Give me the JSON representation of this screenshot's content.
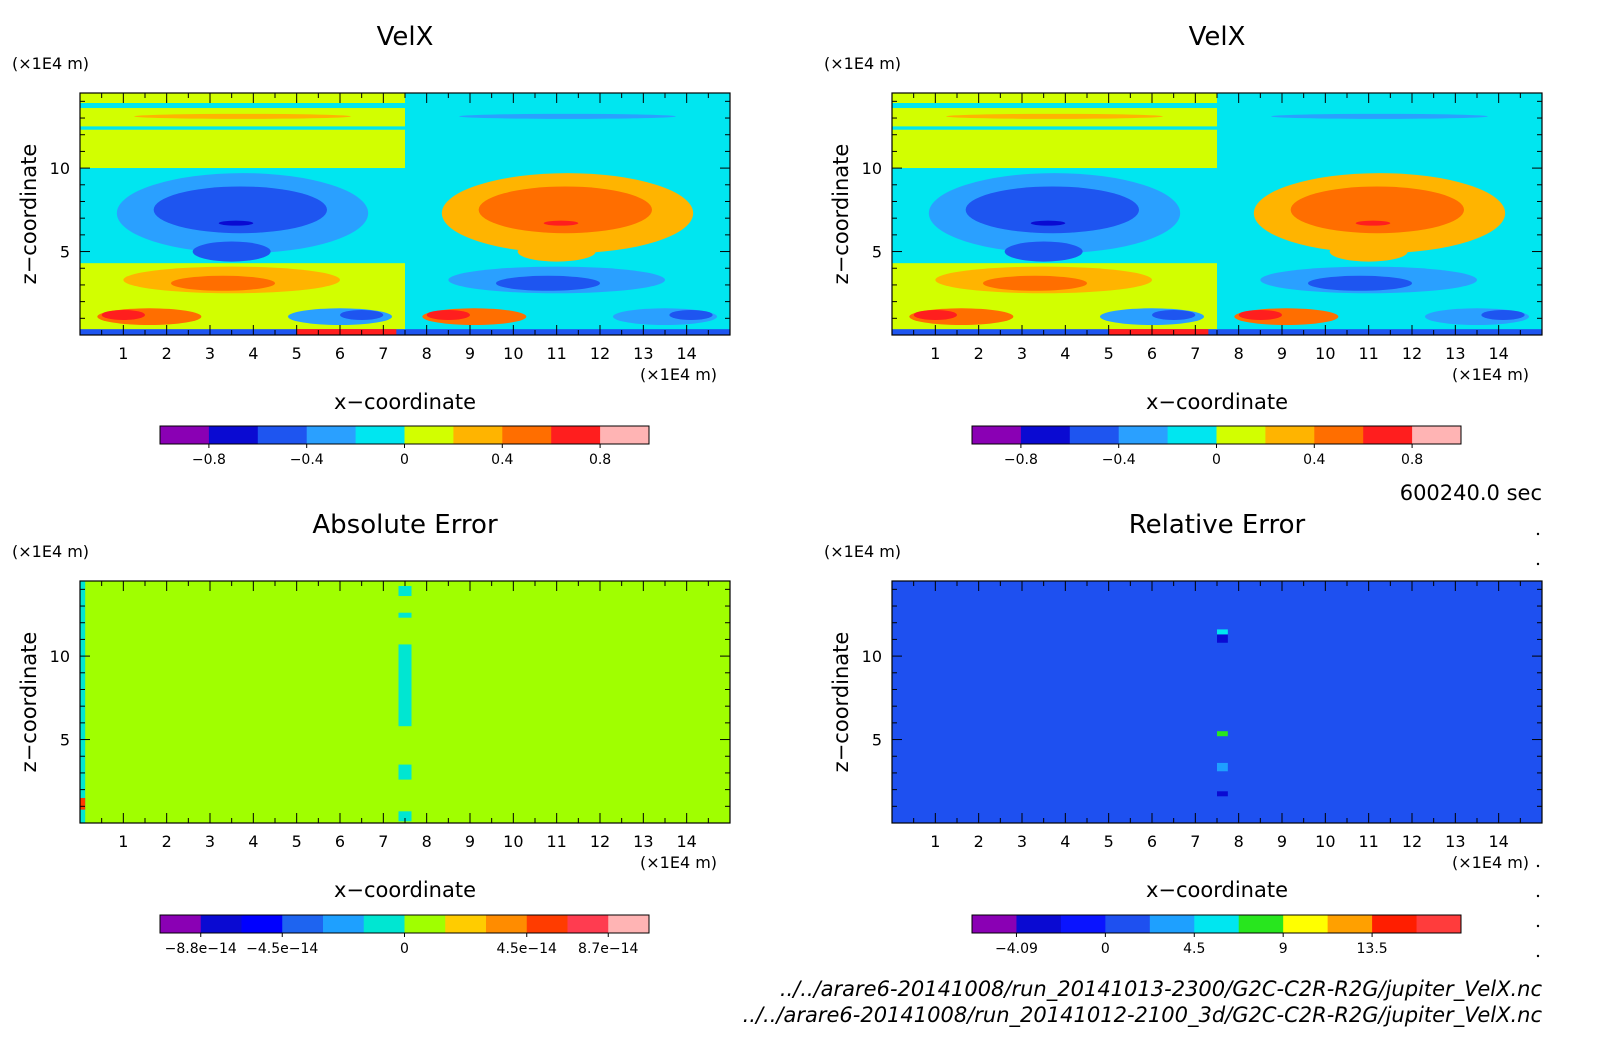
{
  "time_label": "600240.0 sec",
  "footer": {
    "file1": "../../arare6-20141008/run_20141013-2300/G2C-C2R-R2G/jupiter_VelX.nc",
    "file2": "../../arare6-20141008/run_20141012-2100_3d/G2C-C2R-R2G/jupiter_VelX.nc"
  },
  "chart_data": [
    {
      "type": "heatmap",
      "title": "VelX",
      "xlabel": "x−coordinate",
      "ylabel": "z−coordinate",
      "x_unit": "(×1E4 m)",
      "y_unit": "(×1E4 m)",
      "xlim": [
        0,
        15
      ],
      "ylim": [
        0,
        14.5
      ],
      "x_ticks": [
        "1",
        "2",
        "3",
        "4",
        "5",
        "6",
        "7",
        "8",
        "9",
        "10",
        "11",
        "12",
        "13",
        "14"
      ],
      "y_ticks": [
        "5",
        "10"
      ],
      "colorbar": {
        "levels": [
          -1.0,
          -0.8,
          -0.6,
          -0.4,
          -0.2,
          0,
          0.2,
          0.4,
          0.6,
          0.8,
          1.0
        ],
        "colors": [
          "#8a00b4",
          "#0a0ad2",
          "#1e55f0",
          "#2aa0ff",
          "#00e6f0",
          "#d2ff00",
          "#ffb400",
          "#ff6e00",
          "#ff1e1e",
          "#ffb4b4"
        ],
        "tick_labels": [
          "−0.8",
          "−0.4",
          "0",
          "0.4",
          "0.8"
        ],
        "tick_values": [
          -0.8,
          -0.4,
          0,
          0.4,
          0.8
        ]
      }
    },
    {
      "type": "heatmap",
      "title": "VelX",
      "xlabel": "x−coordinate",
      "ylabel": "z−coordinate",
      "x_unit": "(×1E4 m)",
      "y_unit": "(×1E4 m)",
      "xlim": [
        0,
        15
      ],
      "ylim": [
        0,
        14.5
      ],
      "x_ticks": [
        "1",
        "2",
        "3",
        "4",
        "5",
        "6",
        "7",
        "8",
        "9",
        "10",
        "11",
        "12",
        "13",
        "14"
      ],
      "y_ticks": [
        "5",
        "10"
      ],
      "colorbar": {
        "levels": [
          -1.0,
          -0.8,
          -0.6,
          -0.4,
          -0.2,
          0,
          0.2,
          0.4,
          0.6,
          0.8,
          1.0
        ],
        "colors": [
          "#8a00b4",
          "#0a0ad2",
          "#1e55f0",
          "#2aa0ff",
          "#00e6f0",
          "#d2ff00",
          "#ffb400",
          "#ff6e00",
          "#ff1e1e",
          "#ffb4b4"
        ],
        "tick_labels": [
          "−0.8",
          "−0.4",
          "0",
          "0.4",
          "0.8"
        ],
        "tick_values": [
          -0.8,
          -0.4,
          0,
          0.4,
          0.8
        ]
      }
    },
    {
      "type": "heatmap",
      "title": "Absolute Error",
      "xlabel": "x−coordinate",
      "ylabel": "z−coordinate",
      "x_unit": "(×1E4 m)",
      "y_unit": "(×1E4 m)",
      "xlim": [
        0,
        15
      ],
      "ylim": [
        0,
        14.5
      ],
      "x_ticks": [
        "1",
        "2",
        "3",
        "4",
        "5",
        "6",
        "7",
        "8",
        "9",
        "10",
        "11",
        "12",
        "13",
        "14"
      ],
      "y_ticks": [
        "5",
        "10"
      ],
      "colorbar": {
        "levels": [
          -1.05e-13,
          -8.8e-14,
          -7e-14,
          -4.5e-14,
          -3e-14,
          -1.5e-14,
          0,
          1.5e-14,
          3e-14,
          4.5e-14,
          6e-14,
          8.7e-14,
          1.05e-13
        ],
        "colors": [
          "#8a00b4",
          "#0a0ad2",
          "#0000ff",
          "#1e64f0",
          "#1ea0ff",
          "#00e6d2",
          "#a0ff00",
          "#ffcc00",
          "#ff8c00",
          "#ff3c00",
          "#ff3c50",
          "#ffb4b4"
        ],
        "tick_labels": [
          "−8.8e−14",
          "−4.5e−14",
          "0",
          "4.5e−14",
          "8.7e−14"
        ],
        "tick_values": [
          -8.8e-14,
          -4.5e-14,
          0,
          4.5e-14,
          8.7e-14
        ]
      }
    },
    {
      "type": "heatmap",
      "title": "Relative Error",
      "xlabel": "x−coordinate",
      "ylabel": "z−coordinate",
      "x_unit": "(×1E4 m)",
      "y_unit": "(×1E4 m)",
      "xlim": [
        0,
        15
      ],
      "ylim": [
        0,
        14.5
      ],
      "x_ticks": [
        "1",
        "2",
        "3",
        "4",
        "5",
        "6",
        "7",
        "8",
        "9",
        "10",
        "11",
        "12",
        "13",
        "14"
      ],
      "y_ticks": [
        "5",
        "10"
      ],
      "colorbar": {
        "levels": [
          -6.0,
          -4.09,
          -2.0,
          0,
          2.25,
          4.5,
          6.75,
          9,
          11.25,
          13.5,
          15.5,
          16.5
        ],
        "colors": [
          "#8a00b4",
          "#0a0ad2",
          "#0a14ff",
          "#1e50f0",
          "#1ea0ff",
          "#00e6f0",
          "#28e61e",
          "#ffff00",
          "#ffa000",
          "#ff1e00",
          "#ff3c3c"
        ],
        "tick_labels": [
          "−4.09",
          "0",
          "4.5",
          "9",
          "13.5"
        ],
        "tick_values": [
          -4.09,
          0,
          4.5,
          9,
          13.5
        ]
      }
    }
  ]
}
